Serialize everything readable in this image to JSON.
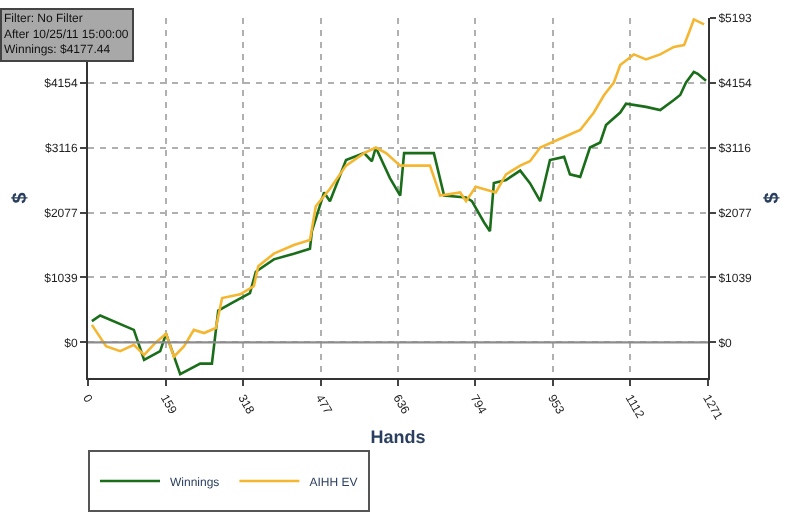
{
  "chart_data": {
    "type": "line",
    "xlabel": "Hands",
    "ylabel": "$",
    "y2label": "$",
    "annotations": [
      "Filter: No Filter",
      "After 10/25/11 15:00:00",
      "Winnings: $4177.44"
    ],
    "xlim": [
      0,
      1271
    ],
    "xticks": [
      0,
      159,
      318,
      477,
      636,
      794,
      953,
      1112,
      1271
    ],
    "ylim": [
      -570,
      5193
    ],
    "yticks": [
      {
        "value": 0,
        "label": "$0"
      },
      {
        "value": 1039,
        "label": "$1039"
      },
      {
        "value": 2077,
        "label": "$2077"
      },
      {
        "value": 3116,
        "label": "$3116"
      },
      {
        "value": 4154,
        "label": "$4154"
      },
      {
        "value": 5193,
        "label": null
      }
    ],
    "y2lim": [
      -570,
      5193
    ],
    "y2ticks": [
      {
        "value": 0,
        "label": "$0"
      },
      {
        "value": 1039,
        "label": "$1039"
      },
      {
        "value": 2077,
        "label": "$2077"
      },
      {
        "value": 3116,
        "label": "$3116"
      },
      {
        "value": 4154,
        "label": "$4154"
      },
      {
        "value": 5193,
        "label": "$5193"
      }
    ],
    "grid": true,
    "legend": "bottom left",
    "marker": "none",
    "line_style": "solid",
    "ref_lines": [
      {
        "axis": "y",
        "value": 0,
        "color": "#8c8c8c"
      }
    ],
    "series": [
      {
        "name": "Winnings",
        "color": "#1a6e1a",
        "x": [
          8,
          25,
          94,
          115,
          148,
          160,
          189,
          230,
          254,
          267,
          299,
          332,
          344,
          381,
          422,
          455,
          459,
          484,
          496,
          529,
          566,
          582,
          590,
          619,
          640,
          648,
          709,
          730,
          775,
          787,
          812,
          824,
          832,
          857,
          886,
          906,
          927,
          947,
          976,
          988,
          1009,
          1029,
          1050,
          1062,
          1091,
          1103,
          1144,
          1173,
          1201,
          1214,
          1226,
          1242,
          1250,
          1267
        ],
        "values": [
          340,
          430,
          200,
          -280,
          -140,
          140,
          -510,
          -340,
          -340,
          510,
          650,
          790,
          1130,
          1330,
          1420,
          1500,
          1780,
          2400,
          2260,
          2920,
          3030,
          2900,
          3120,
          2630,
          2350,
          3030,
          3030,
          2350,
          2320,
          2260,
          1920,
          1780,
          2550,
          2600,
          2750,
          2550,
          2260,
          2920,
          2970,
          2690,
          2650,
          3120,
          3200,
          3480,
          3680,
          3820,
          3770,
          3720,
          3880,
          3960,
          4160,
          4330,
          4300,
          4190
        ]
      },
      {
        "name": "AIHH EV",
        "color": "#f5b731",
        "x": [
          8,
          37,
          66,
          94,
          115,
          139,
          160,
          176,
          197,
          217,
          238,
          262,
          275,
          312,
          340,
          349,
          381,
          422,
          455,
          467,
          496,
          529,
          566,
          590,
          611,
          640,
          701,
          722,
          763,
          775,
          795,
          836,
          857,
          886,
          906,
          927,
          968,
          1009,
          1037,
          1058,
          1078,
          1091,
          1119,
          1144,
          1173,
          1201,
          1222,
          1234,
          1242,
          1263
        ],
        "values": [
          280,
          -60,
          -140,
          -40,
          -200,
          0,
          140,
          -230,
          -60,
          200,
          150,
          230,
          710,
          770,
          900,
          1220,
          1420,
          1560,
          1640,
          2180,
          2460,
          2830,
          3030,
          3120,
          3030,
          2830,
          2830,
          2350,
          2400,
          2260,
          2490,
          2400,
          2690,
          2830,
          2900,
          3120,
          3260,
          3400,
          3680,
          3960,
          4160,
          4440,
          4610,
          4530,
          4610,
          4730,
          4760,
          5000,
          5170,
          5090
        ]
      }
    ]
  }
}
